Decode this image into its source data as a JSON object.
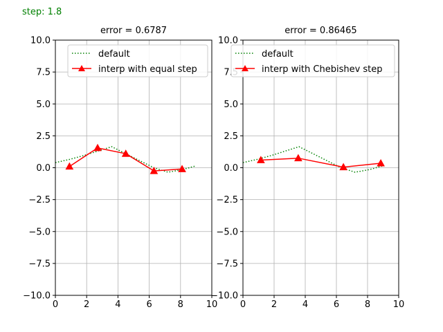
{
  "figure": {
    "step_text": "step: 1.8"
  },
  "chart_data": [
    {
      "type": "line",
      "title": "error = 0.6787",
      "xlabel": "",
      "ylabel": "",
      "xlim": [
        0,
        10
      ],
      "ylim": [
        -10,
        10
      ],
      "xticks": [
        0,
        2,
        4,
        6,
        8,
        10
      ],
      "yticks": [
        -10.0,
        -7.5,
        -5.0,
        -2.5,
        0.0,
        2.5,
        5.0,
        7.5,
        10.0
      ],
      "xtick_labels": [
        "0",
        "2",
        "4",
        "6",
        "8",
        "10"
      ],
      "ytick_labels": [
        "−10.0",
        "−7.5",
        "−5.0",
        "−2.5",
        "0.0",
        "2.5",
        "5.0",
        "7.5",
        "10.0"
      ],
      "grid": true,
      "legend_position": "top-right",
      "series": [
        {
          "name": "default",
          "color": "#008000",
          "linestyle": "dotted",
          "marker": "none",
          "x": [
            0.0,
            0.9,
            1.8,
            2.7,
            3.6,
            4.5,
            5.4,
            6.3,
            7.2,
            8.1,
            9.0
          ],
          "y": [
            0.4,
            0.65,
            0.95,
            1.3,
            1.65,
            1.1,
            0.55,
            0.0,
            -0.35,
            -0.15,
            0.15
          ]
        },
        {
          "name": "interp with equal step",
          "color": "#ff0000",
          "linestyle": "solid",
          "marker": "triangle",
          "x": [
            0.9,
            2.7,
            4.5,
            6.3,
            8.1
          ],
          "y": [
            0.1,
            1.55,
            1.1,
            -0.25,
            -0.1
          ]
        }
      ]
    },
    {
      "type": "line",
      "title": "error = 0.86465",
      "xlabel": "",
      "ylabel": "",
      "xlim": [
        0,
        10
      ],
      "ylim": [
        -10,
        10
      ],
      "xticks": [
        0,
        2,
        4,
        6,
        8,
        10
      ],
      "yticks": [
        -10.0,
        -7.5,
        -5.0,
        -2.5,
        0.0,
        2.5,
        5.0,
        7.5,
        10.0
      ],
      "xtick_labels": [
        "0",
        "2",
        "4",
        "6",
        "8",
        "10"
      ],
      "ytick_labels": [
        "−10.0",
        "−7.5",
        "−5.0",
        "−2.5",
        "0.0",
        "2.5",
        "5.0",
        "7.5",
        "10.0"
      ],
      "grid": true,
      "legend_position": "top-right",
      "series": [
        {
          "name": "default",
          "color": "#008000",
          "linestyle": "dotted",
          "marker": "none",
          "x": [
            0.0,
            0.9,
            1.8,
            2.7,
            3.6,
            4.5,
            5.4,
            6.3,
            7.2,
            8.1,
            9.0
          ],
          "y": [
            0.4,
            0.65,
            0.95,
            1.3,
            1.65,
            1.1,
            0.55,
            0.0,
            -0.35,
            -0.15,
            0.15
          ]
        },
        {
          "name": "interp with Chebishev step",
          "color": "#ff0000",
          "linestyle": "solid",
          "marker": "triangle",
          "x": [
            1.15,
            3.55,
            6.45,
            8.85
          ],
          "y": [
            0.6,
            0.75,
            0.05,
            0.35
          ]
        }
      ]
    }
  ]
}
